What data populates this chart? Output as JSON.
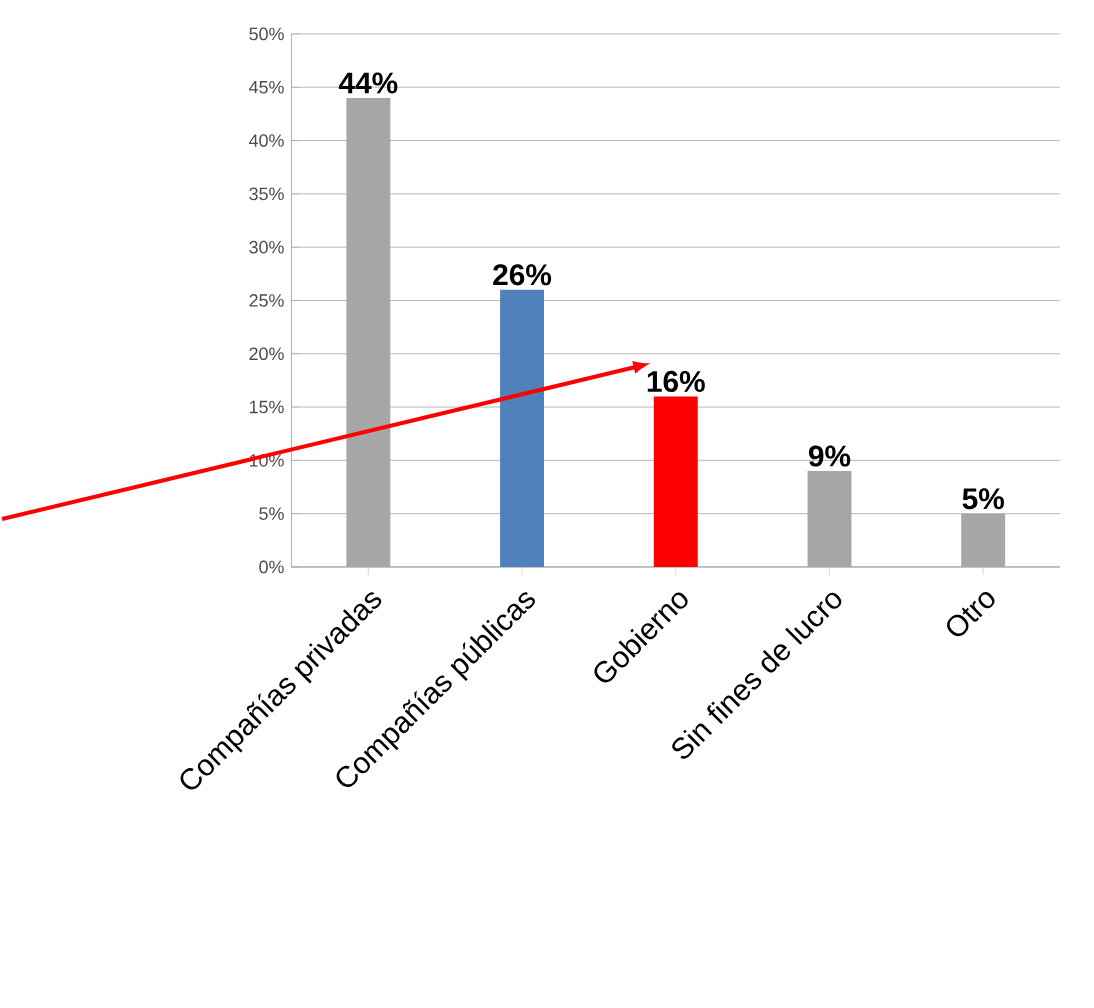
{
  "chart_data": {
    "type": "bar",
    "categories": [
      "Compañías privadas",
      "Compañías públicas",
      "Gobierno",
      "Sin fines de lucro",
      "Otro"
    ],
    "values": [
      44,
      26,
      16,
      9,
      5
    ],
    "colors": [
      "#a6a6a6",
      "#4f81bd",
      "#ff0000",
      "#a6a6a6",
      "#a6a6a6"
    ],
    "value_labels": [
      "44%",
      "26%",
      "16%",
      "9%",
      "5%"
    ],
    "ylim": [
      0,
      50
    ],
    "yticks": [
      {
        "value": 0,
        "label": "0%"
      },
      {
        "value": 5,
        "label": "5%"
      },
      {
        "value": 10,
        "label": "10%"
      },
      {
        "value": 15,
        "label": "15%"
      },
      {
        "value": 20,
        "label": "20%"
      },
      {
        "value": 25,
        "label": "25%"
      },
      {
        "value": 30,
        "label": "30%"
      },
      {
        "value": 35,
        "label": "35%"
      },
      {
        "value": 40,
        "label": "40%"
      },
      {
        "value": 45,
        "label": "45%"
      },
      {
        "value": 50,
        "label": "50%"
      }
    ],
    "grid": "y"
  }
}
